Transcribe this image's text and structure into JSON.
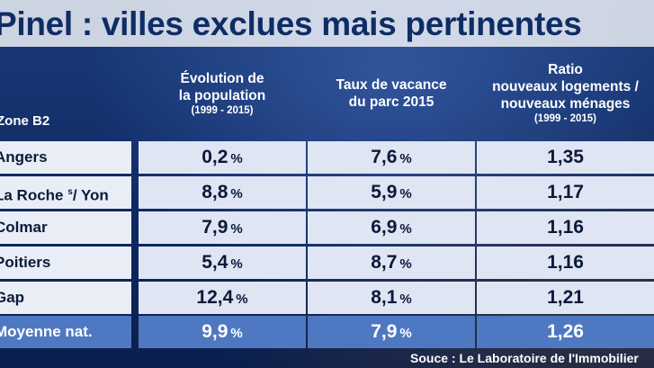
{
  "title": "Pinel : villes exclues mais pertinentes",
  "headers": {
    "zone": "Zone B2",
    "col1_main1": "Évolution de",
    "col1_main2": "la population",
    "col1_sub": "(1999 - 2015)",
    "col2_main1": "Taux de vacance",
    "col2_main2": "du parc 2015",
    "col3_main1": "Ratio",
    "col3_main2": "nouveaux logements /",
    "col3_main3": "nouveaux ménages",
    "col3_sub": "(1999 - 2015)"
  },
  "rows": [
    {
      "city": "Angers",
      "evolution": "0,2",
      "vacance": "7,6",
      "ratio": "1,35"
    },
    {
      "city_pre": "La Roche ",
      "city_sup": "s",
      "city_post": "/ Yon",
      "evolution": "8,8",
      "vacance": "5,9",
      "ratio": "1,17"
    },
    {
      "city": "Colmar",
      "evolution": "7,9",
      "vacance": "6,9",
      "ratio": "1,16"
    },
    {
      "city": "Poitiers",
      "evolution": "5,4",
      "vacance": "8,7",
      "ratio": "1,16"
    },
    {
      "city": "Gap",
      "evolution": "12,4",
      "vacance": "8,1",
      "ratio": "1,21"
    }
  ],
  "average": {
    "city": "Moyenne nat.",
    "evolution": "9,9",
    "vacance": "7,9",
    "ratio": "1,26"
  },
  "percent_sign": "%",
  "source": "Souce : Le Laboratoire de l'Immobilier"
}
